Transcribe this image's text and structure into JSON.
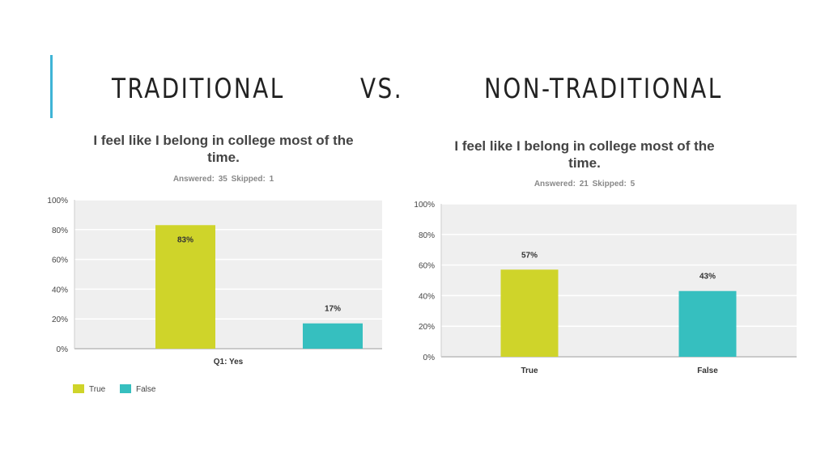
{
  "slide": {
    "left_heading": "TRADITIONAL",
    "middle_heading": "VS.",
    "right_heading": "NON-TRADITIONAL",
    "accent_color": "#3fb4d6"
  },
  "chart_data": [
    {
      "type": "bar",
      "title": "I feel like I belong in college most of the time.",
      "meta": "Answered: 35    Skipped: 1",
      "categories": [
        "Q1: Yes"
      ],
      "series": [
        {
          "name": "True",
          "values": [
            83
          ],
          "color": "#cfd42a",
          "labels": [
            "83%"
          ]
        },
        {
          "name": "False",
          "values": [
            17
          ],
          "color": "#36bfbf",
          "labels": [
            "17%"
          ]
        }
      ],
      "ylim": [
        0,
        100
      ],
      "yticks": [
        "0%",
        "20%",
        "40%",
        "60%",
        "80%",
        "100%"
      ],
      "grid": true,
      "legend": "bottom-left"
    },
    {
      "type": "bar",
      "title": "I feel like I belong in college most of the time.",
      "meta": "Answered: 21    Skipped: 5",
      "categories": [
        "True",
        "False"
      ],
      "values": [
        57,
        43
      ],
      "labels": [
        "57%",
        "43%"
      ],
      "colors": [
        "#cfd42a",
        "#36bfbf"
      ],
      "ylim": [
        0,
        100
      ],
      "yticks": [
        "0%",
        "20%",
        "40%",
        "60%",
        "80%",
        "100%"
      ],
      "grid": true
    }
  ]
}
